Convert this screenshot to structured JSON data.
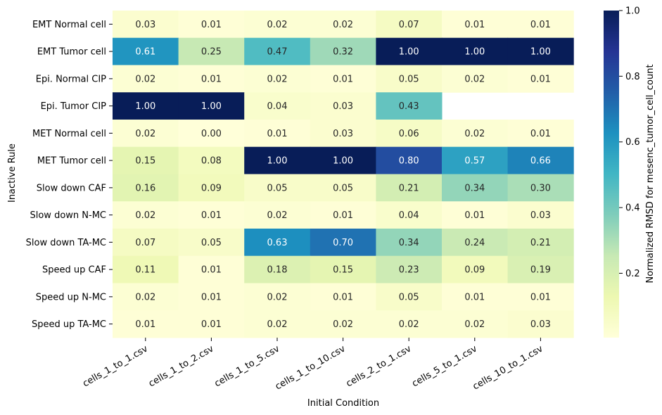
{
  "chart_data": {
    "type": "heatmap",
    "xlabel": "Initial Condition",
    "ylabel": "Inactive Rule",
    "colorbar_label": "Normalized RMSD for mesenc_tumor_cell_count",
    "colorbar_ticks": [
      "0.2",
      "0.4",
      "0.6",
      "0.8",
      "1.0"
    ],
    "colorbar_tick_values": [
      0.2,
      0.4,
      0.6,
      0.8,
      1.0
    ],
    "vmin": 0.0,
    "vmax": 1.0,
    "colormap": "YlGnBu",
    "x_categories": [
      "cells_1_to_1.csv",
      "cells_1_to_2.csv",
      "cells_1_to_5.csv",
      "cells_1_to_10.csv",
      "cells_2_to_1.csv",
      "cells_5_to_1.csv",
      "cells_10_to_1.csv"
    ],
    "y_categories": [
      "EMT Normal cell",
      "EMT Tumor cell",
      "Epi. Normal CIP",
      "Epi. Tumor CIP",
      "MET Normal cell",
      "MET Tumor cell",
      "Slow down CAF",
      "Slow down N-MC",
      "Slow down TA-MC",
      "Speed up CAF",
      "Speed up N-MC",
      "Speed up TA-MC"
    ],
    "values": [
      [
        0.03,
        0.01,
        0.02,
        0.02,
        0.07,
        0.01,
        0.01
      ],
      [
        0.61,
        0.25,
        0.47,
        0.32,
        1.0,
        1.0,
        1.0
      ],
      [
        0.02,
        0.01,
        0.02,
        0.01,
        0.05,
        0.02,
        0.01
      ],
      [
        1.0,
        1.0,
        0.04,
        0.03,
        0.43,
        null,
        null
      ],
      [
        0.02,
        0.0,
        0.01,
        0.03,
        0.06,
        0.02,
        0.01
      ],
      [
        0.15,
        0.08,
        1.0,
        1.0,
        0.8,
        0.57,
        0.66
      ],
      [
        0.16,
        0.09,
        0.05,
        0.05,
        0.21,
        0.34,
        0.3
      ],
      [
        0.02,
        0.01,
        0.02,
        0.01,
        0.04,
        0.01,
        0.03
      ],
      [
        0.07,
        0.05,
        0.63,
        0.7,
        0.34,
        0.24,
        0.21
      ],
      [
        0.11,
        0.01,
        0.18,
        0.15,
        0.23,
        0.09,
        0.19
      ],
      [
        0.02,
        0.01,
        0.02,
        0.01,
        0.05,
        0.01,
        0.01
      ],
      [
        0.01,
        0.01,
        0.02,
        0.02,
        0.02,
        0.02,
        0.03
      ]
    ]
  }
}
